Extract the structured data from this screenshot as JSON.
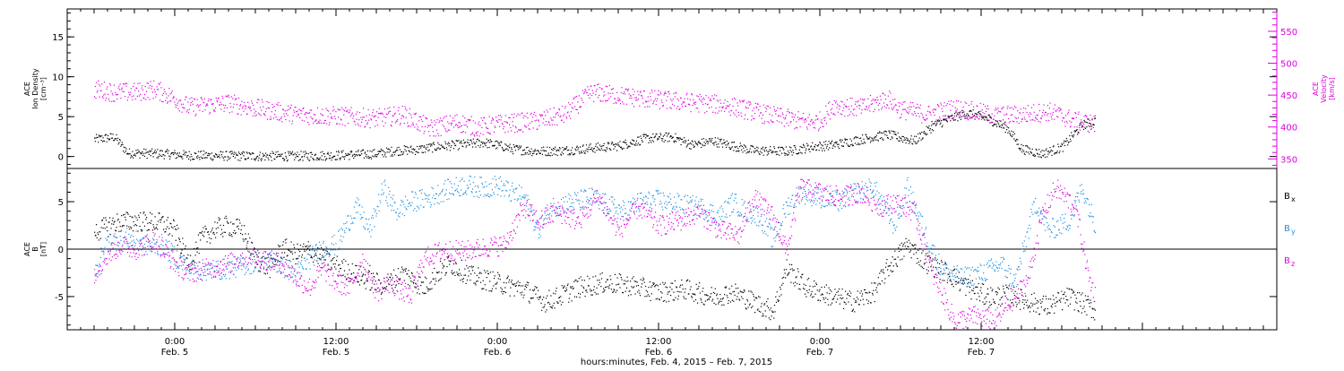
{
  "chart_data": [
    {
      "type": "scatter",
      "panel": "top",
      "left_axis": {
        "label_lines": [
          "ACE",
          "Ion Density",
          "[cm⁻³]"
        ],
        "ticks": [
          0,
          5,
          10,
          15
        ],
        "ylim": [
          -1.5,
          18.5
        ],
        "color": "#000000"
      },
      "right_axis": {
        "label_lines": [
          "ACE",
          "Velocity",
          "[km/s]"
        ],
        "ticks": [
          350,
          400,
          450,
          500,
          550
        ],
        "ylim": [
          335,
          585
        ],
        "color": "#e000e0"
      },
      "series": [
        {
          "axis": "left",
          "color": "#000000",
          "points": [
            [
              -6.0,
              2.2
            ],
            [
              -4.5,
              2.5
            ],
            [
              -3.5,
              0.5
            ],
            [
              -1.0,
              0.4
            ],
            [
              1.0,
              0.2
            ],
            [
              6.0,
              0.1
            ],
            [
              9.0,
              0.1
            ],
            [
              12.0,
              0.2
            ],
            [
              15.0,
              0.4
            ],
            [
              16.5,
              0.8
            ],
            [
              18.0,
              0.9
            ],
            [
              19.5,
              1.3
            ],
            [
              21.0,
              1.5
            ],
            [
              23.0,
              1.8
            ],
            [
              24.5,
              1.3
            ],
            [
              25.0,
              1.0
            ],
            [
              27.0,
              0.7
            ],
            [
              29.0,
              0.8
            ],
            [
              33.0,
              1.4
            ],
            [
              35.0,
              2.3
            ],
            [
              37.0,
              2.5
            ],
            [
              38.5,
              1.5
            ],
            [
              40.0,
              2.0
            ],
            [
              43.0,
              0.8
            ],
            [
              45.5,
              0.7
            ],
            [
              47.5,
              1.3
            ],
            [
              49.0,
              1.5
            ],
            [
              51.0,
              2.2
            ],
            [
              53.0,
              2.8
            ],
            [
              55.0,
              2.0
            ],
            [
              56.5,
              4.0
            ],
            [
              58.0,
              5.0
            ],
            [
              59.0,
              5.5
            ],
            [
              60.5,
              4.8
            ],
            [
              62.0,
              3.5
            ],
            [
              63.0,
              1.0
            ],
            [
              64.5,
              0.4
            ],
            [
              66.0,
              1.2
            ],
            [
              67.5,
              4.0
            ],
            [
              68.5,
              4.5
            ]
          ]
        },
        {
          "axis": "right",
          "color": "#e000e0",
          "points": [
            [
              -6.0,
              460
            ],
            [
              -4.5,
              455
            ],
            [
              -3.0,
              455
            ],
            [
              -1.5,
              460
            ],
            [
              0.0,
              445
            ],
            [
              1.0,
              432
            ],
            [
              4.0,
              438
            ],
            [
              6.0,
              430
            ],
            [
              9.0,
              420
            ],
            [
              12.0,
              418
            ],
            [
              15.0,
              414
            ],
            [
              17.0,
              420
            ],
            [
              19.0,
              398
            ],
            [
              21.0,
              408
            ],
            [
              22.5,
              400
            ],
            [
              24.0,
              405
            ],
            [
              27.0,
              410
            ],
            [
              29.0,
              420
            ],
            [
              31.0,
              455
            ],
            [
              33.0,
              450
            ],
            [
              35.0,
              445
            ],
            [
              38.0,
              440
            ],
            [
              41.0,
              435
            ],
            [
              44.0,
              420
            ],
            [
              47.0,
              408
            ],
            [
              48.0,
              410
            ],
            [
              49.0,
              435
            ],
            [
              51.0,
              430
            ],
            [
              53.0,
              445
            ],
            [
              54.0,
              428
            ],
            [
              56.0,
              420
            ],
            [
              58.0,
              430
            ],
            [
              59.5,
              425
            ],
            [
              61.0,
              418
            ],
            [
              63.0,
              420
            ],
            [
              65.0,
              425
            ],
            [
              67.0,
              410
            ],
            [
              68.5,
              405
            ]
          ]
        }
      ]
    },
    {
      "type": "scatter",
      "panel": "bottom",
      "left_axis": {
        "label_lines": [
          "ACE",
          "B",
          "[nT]"
        ],
        "ticks": [
          -5,
          0,
          5
        ],
        "ylim": [
          -8.5,
          8.5
        ],
        "color": "#000000"
      },
      "legend": [
        {
          "label": "B",
          "subscript": "x",
          "color": "#000000"
        },
        {
          "label": "B",
          "subscript": "y",
          "color": "#1e90e0"
        },
        {
          "label": "B",
          "subscript": "z",
          "color": "#e000e0"
        }
      ],
      "series": [
        {
          "name": "Bx",
          "color": "#000000",
          "points": [
            [
              -6.0,
              1.8
            ],
            [
              -4.5,
              2.8
            ],
            [
              -3.0,
              3.0
            ],
            [
              -1.0,
              2.8
            ],
            [
              0.0,
              2.0
            ],
            [
              1.0,
              -1.5
            ],
            [
              2.0,
              1.2
            ],
            [
              3.0,
              2.2
            ],
            [
              4.0,
              2.5
            ],
            [
              5.0,
              2.0
            ],
            [
              6.0,
              -1.0
            ],
            [
              7.0,
              -2.0
            ],
            [
              8.0,
              0.2
            ],
            [
              9.0,
              -0.5
            ],
            [
              10.0,
              0.0
            ],
            [
              11.0,
              -1.0
            ],
            [
              12.5,
              -2.0
            ],
            [
              14.0,
              -3.0
            ],
            [
              15.5,
              -3.8
            ],
            [
              17.0,
              -2.5
            ],
            [
              18.5,
              -4.0
            ],
            [
              19.5,
              -2.5
            ],
            [
              20.5,
              -1.5
            ],
            [
              22.0,
              -2.8
            ],
            [
              24.0,
              -3.5
            ],
            [
              26.0,
              -4.2
            ],
            [
              27.5,
              -5.5
            ],
            [
              28.5,
              -5.0
            ],
            [
              30.0,
              -4.0
            ],
            [
              32.0,
              -3.5
            ],
            [
              34.0,
              -3.8
            ],
            [
              36.0,
              -4.5
            ],
            [
              38.0,
              -4.2
            ],
            [
              40.0,
              -5.0
            ],
            [
              41.5,
              -4.5
            ],
            [
              43.0,
              -5.5
            ],
            [
              44.5,
              -6.5
            ],
            [
              45.5,
              -2.0
            ],
            [
              47.0,
              -4.0
            ],
            [
              49.0,
              -5.0
            ],
            [
              50.5,
              -5.5
            ],
            [
              52.0,
              -4.5
            ],
            [
              53.0,
              -2.0
            ],
            [
              54.5,
              0.5
            ],
            [
              56.0,
              -1.5
            ],
            [
              57.5,
              -2.5
            ],
            [
              59.0,
              -4.0
            ],
            [
              60.5,
              -5.0
            ],
            [
              62.0,
              -4.8
            ],
            [
              63.5,
              -5.5
            ],
            [
              65.0,
              -6.0
            ],
            [
              66.5,
              -5.0
            ],
            [
              68.0,
              -6.0
            ],
            [
              68.5,
              -6.5
            ]
          ]
        },
        {
          "name": "By",
          "color": "#1e90e0",
          "points": [
            [
              -6.0,
              -2.5
            ],
            [
              -5.0,
              0.8
            ],
            [
              -3.5,
              1.2
            ],
            [
              -2.0,
              0.3
            ],
            [
              -1.0,
              0.5
            ],
            [
              1.0,
              -2.0
            ],
            [
              2.5,
              -2.2
            ],
            [
              4.0,
              -2.0
            ],
            [
              5.5,
              -1.5
            ],
            [
              7.0,
              -1.0
            ],
            [
              8.0,
              -1.8
            ],
            [
              9.0,
              -2.5
            ],
            [
              10.0,
              -1.0
            ],
            [
              11.0,
              0.2
            ],
            [
              12.0,
              0.5
            ],
            [
              13.5,
              4.5
            ],
            [
              14.5,
              2.0
            ],
            [
              15.5,
              6.5
            ],
            [
              16.5,
              4.0
            ],
            [
              17.5,
              5.0
            ],
            [
              19.0,
              5.5
            ],
            [
              20.0,
              6.2
            ],
            [
              21.5,
              6.8
            ],
            [
              23.0,
              6.5
            ],
            [
              24.0,
              6.8
            ],
            [
              25.0,
              6.0
            ],
            [
              26.0,
              5.5
            ],
            [
              27.0,
              2.0
            ],
            [
              28.0,
              4.5
            ],
            [
              29.5,
              5.0
            ],
            [
              31.0,
              5.5
            ],
            [
              32.5,
              4.5
            ],
            [
              33.5,
              4.0
            ],
            [
              34.5,
              5.0
            ],
            [
              36.0,
              5.2
            ],
            [
              37.5,
              4.8
            ],
            [
              39.0,
              4.5
            ],
            [
              40.5,
              3.5
            ],
            [
              41.5,
              5.0
            ],
            [
              42.5,
              4.0
            ],
            [
              43.5,
              3.5
            ],
            [
              44.5,
              1.0
            ],
            [
              45.5,
              4.5
            ],
            [
              46.5,
              6.0
            ],
            [
              48.0,
              5.5
            ],
            [
              49.5,
              5.0
            ],
            [
              50.5,
              6.0
            ],
            [
              52.0,
              6.5
            ],
            [
              53.5,
              2.5
            ],
            [
              54.5,
              6.5
            ],
            [
              56.0,
              1.0
            ],
            [
              57.0,
              -2.0
            ],
            [
              58.5,
              -3.0
            ],
            [
              60.0,
              -2.5
            ],
            [
              61.5,
              -1.5
            ],
            [
              62.5,
              -3.5
            ],
            [
              64.0,
              5.0
            ],
            [
              65.0,
              2.0
            ],
            [
              66.5,
              3.0
            ],
            [
              67.5,
              6.5
            ],
            [
              68.5,
              2.5
            ]
          ]
        },
        {
          "name": "Bz",
          "color": "#e000e0",
          "points": [
            [
              -6.0,
              -2.5
            ],
            [
              -5.0,
              -0.5
            ],
            [
              -4.0,
              0.5
            ],
            [
              -3.0,
              0.0
            ],
            [
              -1.5,
              1.0
            ],
            [
              0.0,
              -1.5
            ],
            [
              1.0,
              -2.5
            ],
            [
              2.5,
              -2.0
            ],
            [
              4.0,
              -1.5
            ],
            [
              5.5,
              -0.5
            ],
            [
              6.5,
              -1.0
            ],
            [
              8.0,
              -1.5
            ],
            [
              9.0,
              -3.0
            ],
            [
              10.0,
              -4.0
            ],
            [
              11.0,
              -2.0
            ],
            [
              12.0,
              -3.5
            ],
            [
              13.0,
              -4.0
            ],
            [
              14.0,
              -1.0
            ],
            [
              15.0,
              -4.5
            ],
            [
              16.0,
              -3.5
            ],
            [
              17.5,
              -5.0
            ],
            [
              18.5,
              -1.0
            ],
            [
              20.0,
              0.0
            ],
            [
              21.5,
              -0.2
            ],
            [
              23.0,
              0.2
            ],
            [
              24.5,
              0.5
            ],
            [
              26.0,
              4.5
            ],
            [
              27.0,
              3.0
            ],
            [
              28.5,
              4.0
            ],
            [
              30.0,
              3.0
            ],
            [
              31.5,
              5.5
            ],
            [
              33.0,
              2.0
            ],
            [
              34.5,
              4.5
            ],
            [
              36.0,
              2.5
            ],
            [
              37.5,
              3.0
            ],
            [
              39.0,
              4.0
            ],
            [
              40.5,
              2.0
            ],
            [
              42.0,
              1.5
            ],
            [
              43.0,
              5.5
            ],
            [
              44.5,
              3.5
            ],
            [
              45.5,
              -0.2
            ],
            [
              46.5,
              6.5
            ],
            [
              48.0,
              6.0
            ],
            [
              49.5,
              5.5
            ],
            [
              51.0,
              6.0
            ],
            [
              52.5,
              4.5
            ],
            [
              53.5,
              5.0
            ],
            [
              55.0,
              4.0
            ],
            [
              56.5,
              -3.0
            ],
            [
              58.0,
              -7.5
            ],
            [
              59.5,
              -7.0
            ],
            [
              61.0,
              -7.5
            ],
            [
              62.5,
              -5.0
            ],
            [
              63.5,
              -3.0
            ],
            [
              64.5,
              3.5
            ],
            [
              65.5,
              6.5
            ],
            [
              67.0,
              4.5
            ],
            [
              68.0,
              -3.0
            ],
            [
              68.5,
              -5.0
            ]
          ]
        }
      ]
    }
  ],
  "x_axis": {
    "xlim": [
      -8.0,
      82.0
    ],
    "major_ticks": [
      {
        "x": 0,
        "time": "0:00",
        "date": "Feb. 5"
      },
      {
        "x": 12,
        "time": "12:00",
        "date": "Feb. 5"
      },
      {
        "x": 24,
        "time": "0:00",
        "date": "Feb. 6"
      },
      {
        "x": 36,
        "time": "12:00",
        "date": "Feb. 6"
      },
      {
        "x": 48,
        "time": "0:00",
        "date": "Feb. 7"
      },
      {
        "x": 60,
        "time": "12:00",
        "date": "Feb. 7"
      }
    ],
    "xlabel": "hours:minutes, Feb.  4, 2015 – Feb.  7, 2015"
  }
}
